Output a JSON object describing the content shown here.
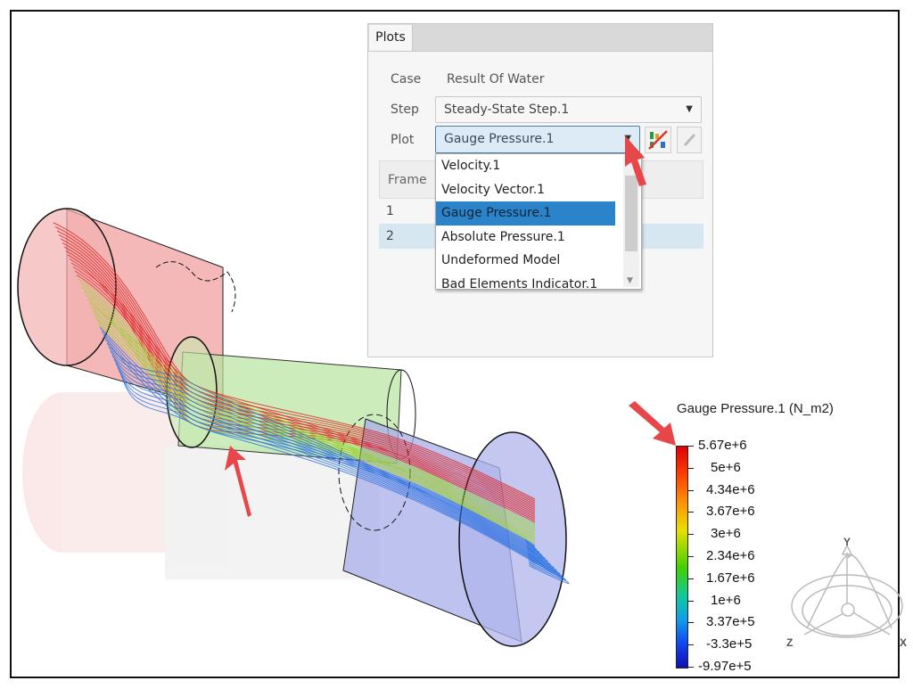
{
  "panel": {
    "tab": "Plots",
    "case_label": "Case",
    "case_value": "Result Of Water",
    "step_label": "Step",
    "step_value": "Steady-State Step.1",
    "plot_label": "Plot",
    "plot_value": "Gauge Pressure.1",
    "table_header": "Frame",
    "rows": [
      "1",
      "2"
    ],
    "dropdown_items": [
      "Velocity.1",
      "Velocity Vector.1",
      "Gauge Pressure.1",
      "Absolute Pressure.1",
      "Undeformed Model",
      "Bad Elements Indicator.1"
    ],
    "selected_index": 2
  },
  "legend": {
    "title": "Gauge Pressure.1 (N_m2)",
    "labels": [
      "5.67e+6",
      "5e+6",
      "4.34e+6",
      "3.67e+6",
      "3e+6",
      "2.34e+6",
      "1.67e+6",
      "1e+6",
      "3.37e+5",
      "-3.3e+5",
      "-9.97e+5"
    ]
  },
  "triad": {
    "y": "Y",
    "z": "Z",
    "x": "X"
  },
  "colors": {
    "accent": "#2b83c9",
    "arrow": "#e8474a",
    "inlet": "#e88a8a",
    "outlet": "#9aa0e0",
    "middle": "#a8d890"
  }
}
